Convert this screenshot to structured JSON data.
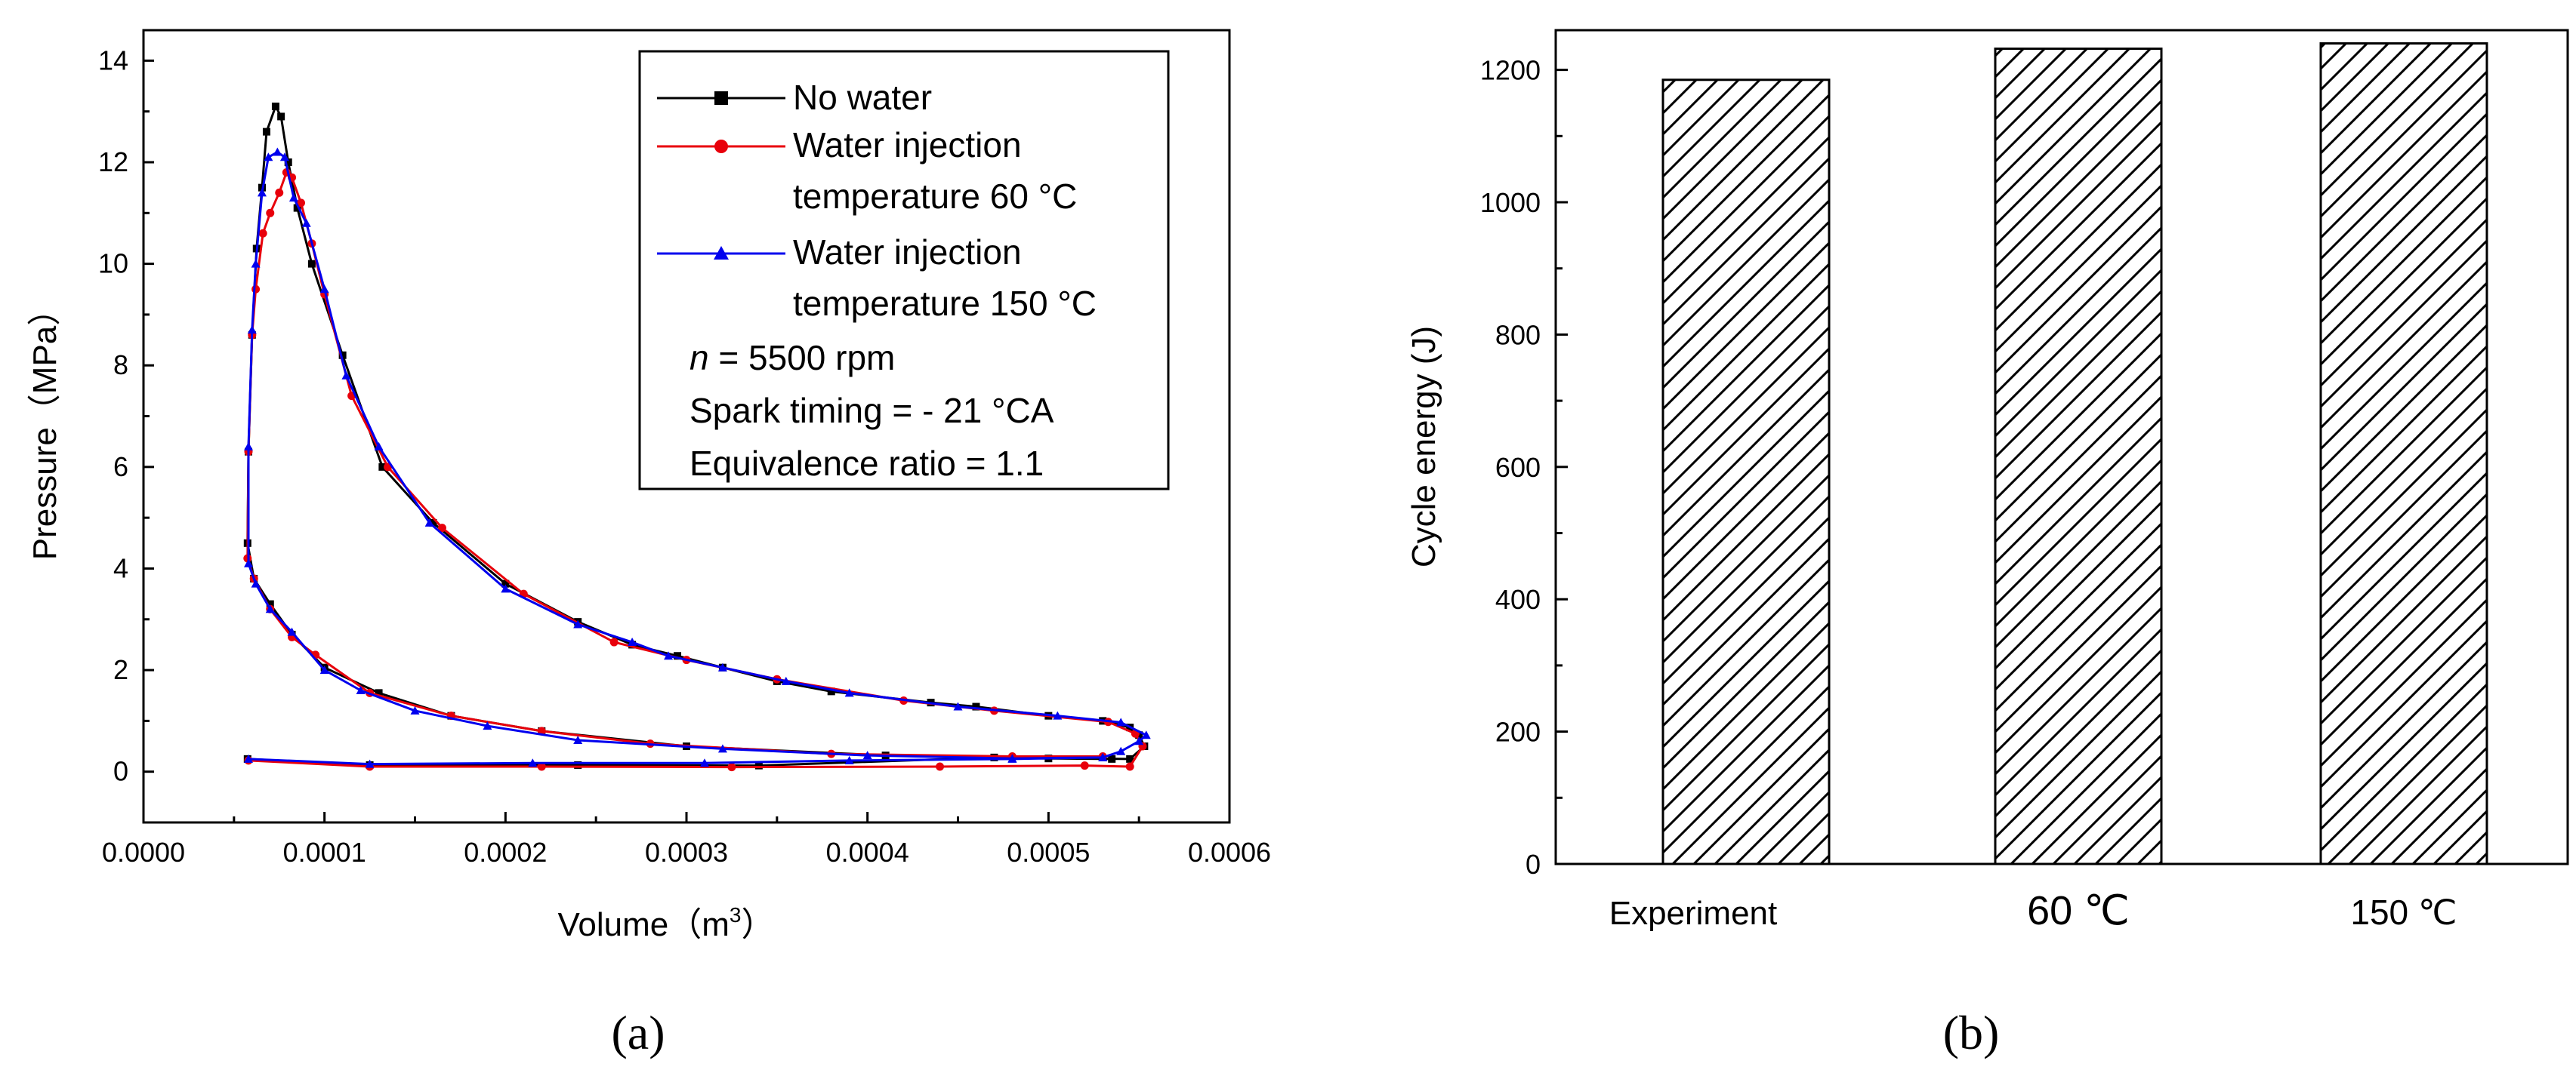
{
  "chart_data": [
    {
      "type": "line",
      "panel": "(a)",
      "xlabel": "Volume（m",
      "xlabel_sup": "3",
      "xlabel_close": "）",
      "ylabel": "Pressure（MPa）",
      "xlim": [
        0,
        0.0006
      ],
      "ylim": [
        -1,
        14.6
      ],
      "xticks": [
        "0.0000",
        "0.0001",
        "0.0002",
        "0.0003",
        "0.0004",
        "0.0005",
        "0.0006"
      ],
      "yticks": [
        "0",
        "2",
        "4",
        "6",
        "8",
        "10",
        "12",
        "14"
      ],
      "series": [
        {
          "name": "No water",
          "color": "#000000",
          "marker": "square",
          "points": [
            [
              5.75e-05,
              0.25
            ],
            [
              0.000125,
              0.13
            ],
            [
              0.00024,
              0.13
            ],
            [
              0.00034,
              0.12
            ],
            [
              0.00047,
              0.28
            ],
            [
              0.000545,
              0.25
            ],
            [
              0.000553,
              0.5
            ],
            [
              0.00055,
              0.72
            ],
            [
              0.000545,
              0.87
            ],
            [
              0.00053,
              1.0
            ],
            [
              0.0005,
              1.1
            ],
            [
              0.00046,
              1.28
            ],
            [
              0.000435,
              1.36
            ],
            [
              0.00038,
              1.58
            ],
            [
              0.00035,
              1.78
            ],
            [
              0.00032,
              2.05
            ],
            [
              0.000295,
              2.28
            ],
            [
              0.00027,
              2.5
            ],
            [
              0.00024,
              2.95
            ],
            [
              0.0002,
              3.7
            ],
            [
              0.00016,
              4.9
            ],
            [
              0.000132,
              6.0
            ],
            [
              0.00011,
              8.2
            ],
            [
              9.3e-05,
              10.0
            ],
            [
              8.5e-05,
              11.1
            ],
            [
              8e-05,
              12.0
            ],
            [
              7.6e-05,
              12.9
            ],
            [
              7.3e-05,
              13.1
            ],
            [
              6.8e-05,
              12.6
            ],
            [
              6.55e-05,
              11.5
            ],
            [
              6.25e-05,
              10.3
            ],
            [
              6e-05,
              8.6
            ],
            [
              5.8e-05,
              6.3
            ],
            [
              5.75e-05,
              4.5
            ],
            [
              6.1e-05,
              3.8
            ],
            [
              7e-05,
              3.3
            ],
            [
              8.2e-05,
              2.7
            ],
            [
              0.0001,
              2.05
            ],
            [
              0.00013,
              1.55
            ],
            [
              0.00017,
              1.1
            ],
            [
              0.00022,
              0.8
            ],
            [
              0.0003,
              0.5
            ],
            [
              0.00041,
              0.32
            ],
            [
              0.0005,
              0.26
            ],
            [
              0.000535,
              0.25
            ]
          ]
        },
        {
          "name": "Water injection temperature 60 °C",
          "color": "#e8000b",
          "marker": "circle",
          "points": [
            [
              5.8e-05,
              0.22
            ],
            [
              0.000125,
              0.1
            ],
            [
              0.00022,
              0.1
            ],
            [
              0.000325,
              0.09
            ],
            [
              0.00044,
              0.1
            ],
            [
              0.00052,
              0.12
            ],
            [
              0.000545,
              0.1
            ],
            [
              0.000552,
              0.5
            ],
            [
              0.000548,
              0.75
            ],
            [
              0.000533,
              0.98
            ],
            [
              0.00047,
              1.2
            ],
            [
              0.00042,
              1.4
            ],
            [
              0.00035,
              1.82
            ],
            [
              0.0003,
              2.2
            ],
            [
              0.00026,
              2.55
            ],
            [
              0.00021,
              3.5
            ],
            [
              0.000165,
              4.8
            ],
            [
              0.000135,
              6.0
            ],
            [
              0.000115,
              7.4
            ],
            [
              0.0001,
              9.4
            ],
            [
              9.3e-05,
              10.4
            ],
            [
              8.7e-05,
              11.2
            ],
            [
              8.2e-05,
              11.7
            ],
            [
              7.9e-05,
              11.8
            ],
            [
              7.5e-05,
              11.4
            ],
            [
              7e-05,
              11.0
            ],
            [
              6.6e-05,
              10.6
            ],
            [
              6.2e-05,
              9.5
            ],
            [
              6e-05,
              8.6
            ],
            [
              5.8e-05,
              6.3
            ],
            [
              5.75e-05,
              4.2
            ],
            [
              6.1e-05,
              3.8
            ],
            [
              7e-05,
              3.2
            ],
            [
              8.2e-05,
              2.65
            ],
            [
              9.5e-05,
              2.3
            ],
            [
              0.000125,
              1.55
            ],
            [
              0.00017,
              1.1
            ],
            [
              0.00022,
              0.8
            ],
            [
              0.00028,
              0.55
            ],
            [
              0.00038,
              0.35
            ],
            [
              0.00048,
              0.3
            ],
            [
              0.00053,
              0.3
            ]
          ]
        },
        {
          "name": "Water injection temperature 150 °C",
          "color": "#0000ee",
          "marker": "triangle",
          "points": [
            [
              5.8e-05,
              0.25
            ],
            [
              0.000125,
              0.15
            ],
            [
              0.000215,
              0.17
            ],
            [
              0.00031,
              0.17
            ],
            [
              0.00039,
              0.22
            ],
            [
              0.00048,
              0.25
            ],
            [
              0.00053,
              0.28
            ],
            [
              0.00054,
              0.4
            ],
            [
              0.00055,
              0.6
            ],
            [
              0.000554,
              0.72
            ],
            [
              0.00054,
              0.97
            ],
            [
              0.000505,
              1.1
            ],
            [
              0.00045,
              1.28
            ],
            [
              0.00039,
              1.55
            ],
            [
              0.000355,
              1.78
            ],
            [
              0.00032,
              2.05
            ],
            [
              0.00029,
              2.28
            ],
            [
              0.00027,
              2.55
            ],
            [
              0.00024,
              2.9
            ],
            [
              0.0002,
              3.6
            ],
            [
              0.000158,
              4.9
            ],
            [
              0.00013,
              6.4
            ],
            [
              0.000112,
              7.8
            ],
            [
              0.0001,
              9.5
            ],
            [
              9e-05,
              10.8
            ],
            [
              8.3e-05,
              11.3
            ],
            [
              7.8e-05,
              12.1
            ],
            [
              7.4e-05,
              12.2
            ],
            [
              6.9e-05,
              12.1
            ],
            [
              6.55e-05,
              11.4
            ],
            [
              6.2e-05,
              10.0
            ],
            [
              6e-05,
              8.7
            ],
            [
              5.8e-05,
              6.4
            ],
            [
              5.8e-05,
              4.1
            ],
            [
              6.2e-05,
              3.7
            ],
            [
              7e-05,
              3.2
            ],
            [
              8.2e-05,
              2.75
            ],
            [
              0.0001,
              2.0
            ],
            [
              0.00012,
              1.6
            ],
            [
              0.00015,
              1.2
            ],
            [
              0.00019,
              0.9
            ],
            [
              0.00024,
              0.62
            ],
            [
              0.00032,
              0.45
            ],
            [
              0.0004,
              0.32
            ],
            [
              0.00048,
              0.26
            ],
            [
              0.00053,
              0.28
            ]
          ]
        }
      ],
      "annotations": [
        "n = 5500 rpm",
        "Spark timing = - 21 °CA",
        "Equivalence ratio = 1.1"
      ],
      "annotation_n": "n",
      "annotation_rpm": " = 5500 rpm",
      "legend_lines": [
        "No water",
        "Water injection",
        "temperature 60 °C",
        "Water injection",
        "temperature 150 °C"
      ],
      "legend_position": "top-right"
    },
    {
      "type": "bar",
      "panel": "(b)",
      "ylabel": "Cycle energy (J)",
      "categories": [
        "Experiment",
        "60 ℃",
        "150 ℃"
      ],
      "values": [
        1185,
        1232,
        1240
      ],
      "ylim": [
        0,
        1260
      ],
      "yticks": [
        "0",
        "200",
        "400",
        "600",
        "800",
        "1000",
        "1200"
      ],
      "pattern": "diagonal-hatch"
    }
  ],
  "labels": {
    "a": "(a)",
    "b": "(b)"
  },
  "colors": {
    "axis": "#000000",
    "no_water": "#000000",
    "water60": "#e8000b",
    "water150": "#0000ee"
  }
}
